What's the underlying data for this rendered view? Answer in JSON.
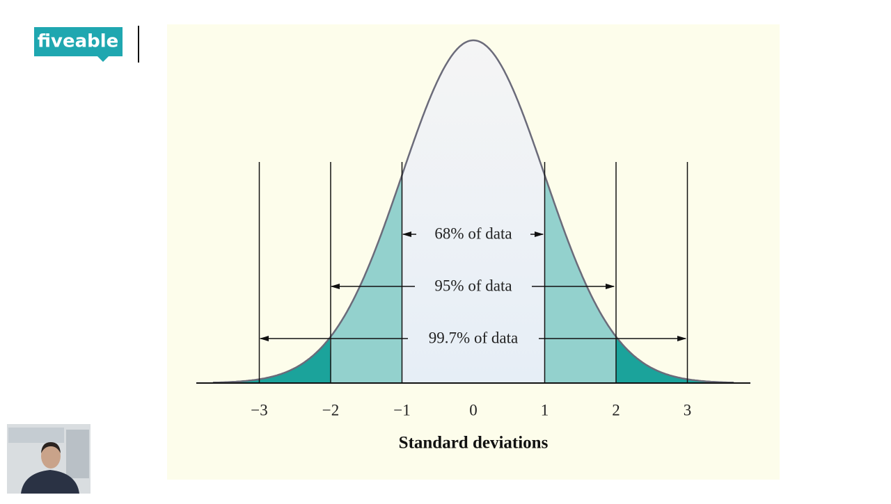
{
  "logo": "fiveable",
  "diagram": {
    "xticks": [
      {
        "value": -3,
        "label": "−3"
      },
      {
        "value": -2,
        "label": "−2"
      },
      {
        "value": -1,
        "label": "−1"
      },
      0,
      1,
      2,
      3
    ],
    "x_label": "Standard deviations",
    "ranges": [
      "68% of data",
      "95% of data",
      "99.7% of data"
    ]
  }
}
